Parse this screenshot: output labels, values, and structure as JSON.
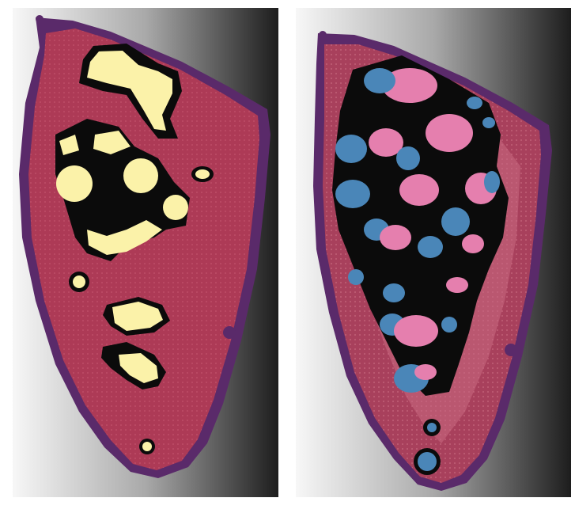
{
  "figure": {
    "panels": [
      {
        "id": "left",
        "categories": [
          {
            "name": "tissue-edge",
            "color": "#5a2a6a"
          },
          {
            "name": "tissue-body",
            "color": "#ad3a56"
          },
          {
            "name": "region-boundary",
            "color": "#0b0b0b"
          },
          {
            "name": "region-core",
            "color": "#fbf2a9"
          }
        ],
        "background": {
          "gradient": [
            "#f7f7f7",
            "#8f8f8f",
            "#1d1d1d"
          ]
        }
      },
      {
        "id": "right",
        "categories": [
          {
            "name": "tissue-edge",
            "color": "#5a2a6a"
          },
          {
            "name": "tissue-body",
            "color": "#a8405c"
          },
          {
            "name": "tissue-body-variant",
            "color": "#c96a82"
          },
          {
            "name": "region-boundary",
            "color": "#0b0b0b"
          },
          {
            "name": "region-blue",
            "color": "#4a86b8"
          },
          {
            "name": "region-pink",
            "color": "#e57fae"
          }
        ],
        "background": {
          "gradient": [
            "#f7f7f7",
            "#8f8f8f",
            "#1d1d1d"
          ]
        }
      }
    ]
  }
}
